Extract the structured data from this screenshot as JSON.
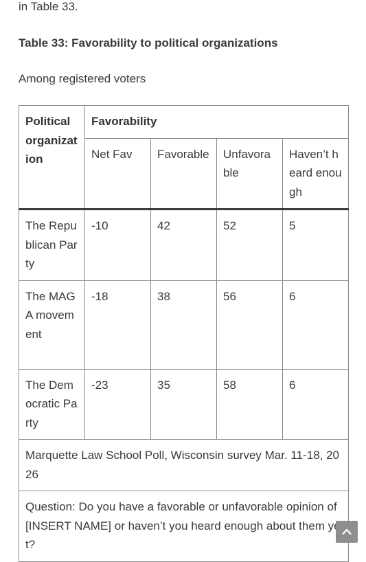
{
  "intro_text": "in Table 33.",
  "table_title": "Table 33: Favorability to political organizations",
  "subtitle": "Among registered voters",
  "table": {
    "header_org": "Political organization",
    "header_group": "Favorability",
    "columns": [
      "Net Fav",
      "Favorable",
      "Unfavorable",
      "Haven’t heard enough"
    ],
    "rows": [
      {
        "org": "The Republican Party",
        "net_fav": "-10",
        "favorable": "42",
        "unfavorable": "52",
        "havent_heard": "5"
      },
      {
        "org": "The MAGA movement",
        "net_fav": "-18",
        "favorable": "38",
        "unfavorable": "56",
        "havent_heard": "6"
      },
      {
        "org": "The Democratic Party",
        "net_fav": "-23",
        "favorable": "35",
        "unfavorable": "58",
        "havent_heard": "6"
      }
    ],
    "source": "Marquette Law School Poll, Wisconsin survey Mar. 11-18, 2026",
    "question": "Question: Do you have a favorable or unfavorable opinion of [INSERT NAME] or haven’t you heard enough about them yet?"
  },
  "scroll_top_icon": "chevron-up-icon"
}
